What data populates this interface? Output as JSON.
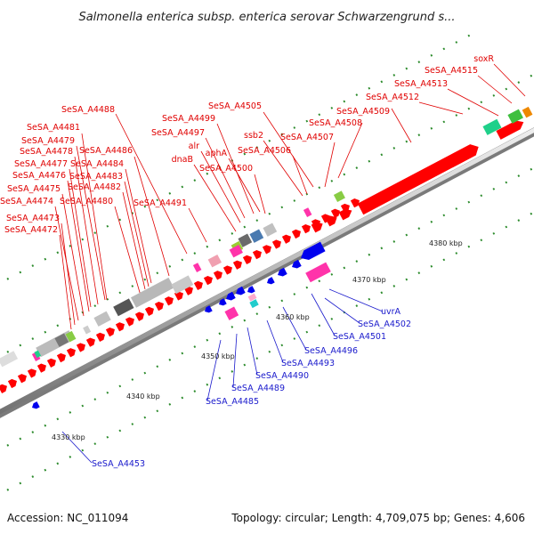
{
  "title": "Salmonella enterica subsp. enterica serovar Schwarzengrund s...",
  "footer": {
    "accession": "Accession: NC_011094",
    "summary": "Topology: circular; Length: 4,709,075 bp; Genes: 4,606"
  },
  "ticks": [
    {
      "label": "4330 kbp",
      "kbp": 4330
    },
    {
      "label": "4340 kbp",
      "kbp": 4340
    },
    {
      "label": "4350 kbp",
      "kbp": 4350
    },
    {
      "label": "4360 kbp",
      "kbp": 4360
    },
    {
      "label": "4370 kbp",
      "kbp": 4370
    },
    {
      "label": "4380 kbp",
      "kbp": 4380
    }
  ],
  "forward_labels": [
    "soxR",
    "SeSA_A4515",
    "SeSA_A4513",
    "SeSA_A4512",
    "SeSA_A4509",
    "SeSA_A4508",
    "SeSA_A4505",
    "ssb2",
    "SeSA_A4507",
    "SeSA_A4506",
    "SeSA_A4499",
    "SeSA_A4497",
    "alr",
    "aphA",
    "dnaB",
    "SeSA_A4500",
    "SeSA_A4488",
    "SeSA_A4481",
    "SeSA_A4479",
    "SeSA_A4478",
    "SeSA_A4486",
    "SeSA_A4477",
    "SeSA_A4484",
    "SeSA_A4476",
    "SeSA_A4483",
    "SeSA_A4475",
    "SeSA_A4482",
    "SeSA_A4474",
    "SeSA_A4480",
    "SeSA_A4491",
    "SeSA_A4473",
    "SeSA_A4472"
  ],
  "reverse_labels": [
    "uvrA",
    "SeSA_A4502",
    "SeSA_A4501",
    "SeSA_A4496",
    "SeSA_A4493",
    "SeSA_A4490",
    "SeSA_A4489",
    "SeSA_A4485",
    "SeSA_A4453"
  ],
  "colors": {
    "forward_gene": "#ff0000",
    "reverse_gene": "#0000ee",
    "forward_label": "#e00000",
    "reverse_label": "#1a1acc",
    "backbone": "#c8c8c8",
    "tick_dot": "#2a8a2a"
  }
}
